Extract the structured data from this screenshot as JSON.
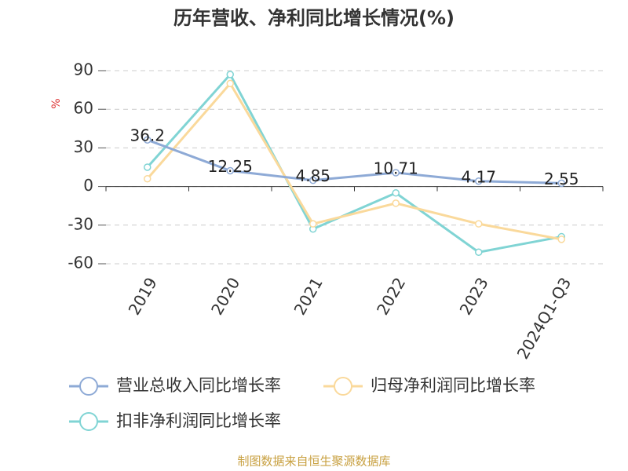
{
  "chart_data": {
    "type": "line",
    "title": "历年营收、净利同比增长情况(%)",
    "y_label": "%",
    "categories": [
      "2019",
      "2020",
      "2021",
      "2022",
      "2023",
      "2024Q1-Q3"
    ],
    "series": [
      {
        "name": "营业总收入同比增长率",
        "color": "#8eaad6",
        "values": [
          36.2,
          12.25,
          4.85,
          10.71,
          4.17,
          2.55
        ],
        "show_labels": true
      },
      {
        "name": "归母净利润同比增长率",
        "color": "#fad99b",
        "values": [
          6,
          80,
          -29,
          -13,
          -29,
          -41
        ],
        "show_labels": false
      },
      {
        "name": "扣非净利润同比增长率",
        "color": "#80d4d4",
        "values": [
          15,
          87,
          -33,
          -5,
          -51,
          -39
        ],
        "show_labels": false
      }
    ],
    "ylim": [
      -60,
      90
    ],
    "yticks": [
      -60,
      -30,
      0,
      30,
      60,
      90
    ],
    "grid": true,
    "source": "制图数据来自恒生聚源数据库"
  }
}
